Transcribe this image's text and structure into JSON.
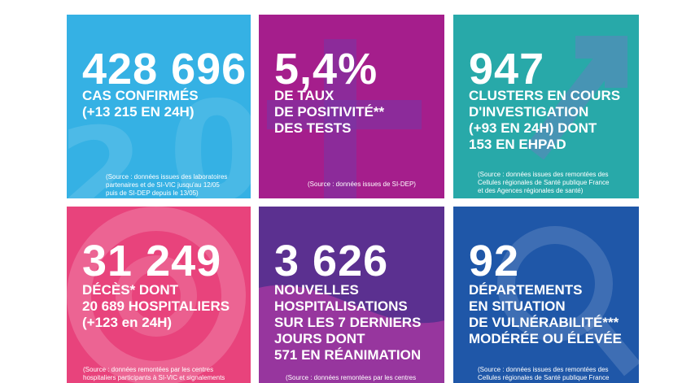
{
  "colors": {
    "cases": "#35b1e4",
    "positivity": "#a51e8c",
    "clusters": "#28a9a9",
    "deaths": "#e8437c",
    "hospitalisations": "#5b3090",
    "departments": "#1f57a8"
  },
  "tiles": [
    {
      "value": "428 696",
      "label": [
        "CAS CONFIRMÉS",
        "(+13 215 EN 24H)"
      ],
      "source": [
        "(Source : données issues des laboratoires",
        "partenaires et de SI-VIC jusqu'au 12/05",
        "puis de SI-DEP depuis le 13/05)"
      ]
    },
    {
      "value": "5,4%",
      "label": [
        "DE TAUX",
        "DE POSITIVITÉ**",
        "DES TESTS"
      ],
      "source": [
        "(Source : données issues de SI-DEP)"
      ]
    },
    {
      "value": "947",
      "label": [
        "CLUSTERS EN COURS",
        "D'INVESTIGATION",
        "(+93 EN 24H) DONT",
        "153 EN EHPAD"
      ],
      "source": [
        "(Source : données issues des remontées des",
        "Cellules régionales de Santé publique France",
        "et des Agences régionales de santé)"
      ]
    },
    {
      "value": "31 249",
      "label": [
        "DÉCÈS* DONT",
        "20 689 HOSPITALIERS",
        "(+123 en 24H)"
      ],
      "source": [
        "(Source : données remontées par les centres",
        "hospitaliers participants à SI-VIC et signalements"
      ]
    },
    {
      "value": "3 626",
      "label": [
        "NOUVELLES",
        "HOSPITALISATIONS",
        "SUR LES 7 DERNIERS",
        "JOURS DONT",
        "571 EN RÉANIMATION"
      ],
      "source": [
        "(Source : données remontées par les centres"
      ]
    },
    {
      "value": "92",
      "label": [
        "DÉPARTEMENTS",
        "EN SITUATION",
        "DE VULNÉRABILITÉ***",
        "MODÉRÉE OU ÉLEVÉE"
      ],
      "source": [
        "(Source : données issues des remontées des",
        "Cellules régionales de Santé publique France"
      ]
    }
  ]
}
